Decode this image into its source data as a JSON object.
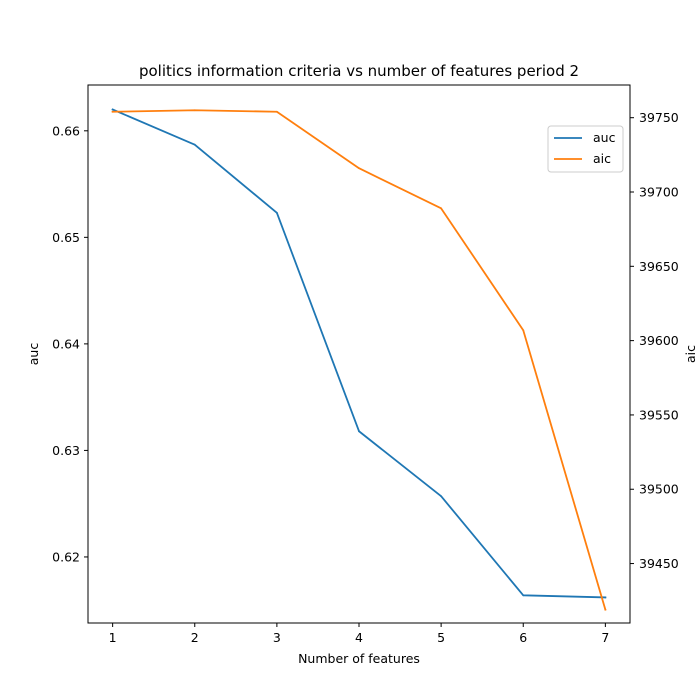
{
  "chart_data": {
    "type": "line",
    "title": "politics information criteria vs number of features period 2",
    "xlabel": "Number of features",
    "ylabel_left": "auc",
    "ylabel_right": "aic",
    "x": [
      1,
      2,
      3,
      4,
      5,
      6,
      7
    ],
    "xlim": [
      0.7,
      7.3
    ],
    "ylim_left": [
      0.6138,
      0.6643
    ],
    "ylim_right": [
      39410,
      39772
    ],
    "xticks": [
      "1",
      "2",
      "3",
      "4",
      "5",
      "6",
      "7"
    ],
    "yticks_left": [
      0.62,
      0.63,
      0.64,
      0.65,
      0.66
    ],
    "yticks_right": [
      39450,
      39500,
      39550,
      39600,
      39650,
      39700,
      39750
    ],
    "legend_position": "upper-right",
    "series": [
      {
        "name": "auc",
        "axis": "left",
        "color": "#1f77b4",
        "values": [
          0.662,
          0.6587,
          0.6523,
          0.6318,
          0.6257,
          0.6164,
          0.6162
        ]
      },
      {
        "name": "aic",
        "axis": "right",
        "color": "#ff7f0e",
        "values": [
          39754,
          39755,
          39754,
          39716,
          39689,
          39607,
          39419
        ]
      }
    ]
  }
}
